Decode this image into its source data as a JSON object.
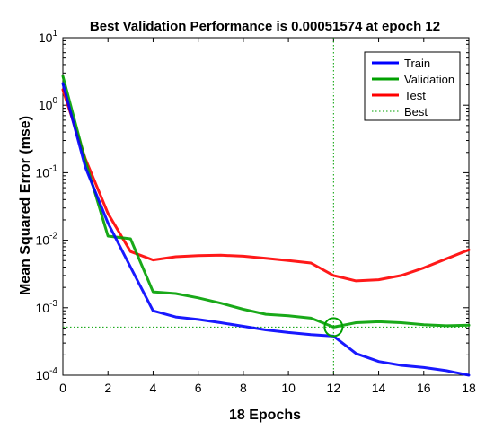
{
  "chart_data": {
    "type": "line",
    "title": "Best Validation Performance is 0.00051574 at epoch 12",
    "xlabel": "18 Epochs",
    "ylabel": "Mean Squared Error  (mse)",
    "xlim": [
      0,
      18
    ],
    "ylim": [
      0.0001,
      10
    ],
    "yscale": "log",
    "x_ticks": [
      "0",
      "2",
      "4",
      "6",
      "8",
      "10",
      "12",
      "14",
      "16",
      "18"
    ],
    "x_tick_values": [
      0,
      2,
      4,
      6,
      8,
      10,
      12,
      14,
      16,
      18
    ],
    "y_ticks": [
      {
        "base": "10",
        "exp": "-4",
        "value": 0.0001
      },
      {
        "base": "10",
        "exp": "-3",
        "value": 0.001
      },
      {
        "base": "10",
        "exp": "-2",
        "value": 0.01
      },
      {
        "base": "10",
        "exp": "-1",
        "value": 0.1
      },
      {
        "base": "10",
        "exp": "0",
        "value": 1
      },
      {
        "base": "10",
        "exp": "1",
        "value": 10
      }
    ],
    "x": [
      0,
      1,
      2,
      3,
      4,
      5,
      6,
      7,
      8,
      9,
      10,
      11,
      12,
      13,
      14,
      15,
      16,
      17,
      18
    ],
    "series": [
      {
        "name": "Train",
        "color": "#0000ff",
        "values": [
          2.1,
          0.12,
          0.018,
          0.004,
          0.0009,
          0.00073,
          0.00067,
          0.0006,
          0.00053,
          0.00047,
          0.00043,
          0.0004,
          0.00038,
          0.00021,
          0.00016,
          0.00014,
          0.00013,
          0.000117,
          0.0001
        ]
      },
      {
        "name": "Validation",
        "color": "#00a000",
        "values": [
          2.7,
          0.15,
          0.0115,
          0.0105,
          0.00172,
          0.00162,
          0.0014,
          0.00117,
          0.00095,
          0.0008,
          0.00076,
          0.0007,
          0.00051574,
          0.0006,
          0.00062,
          0.0006,
          0.00056,
          0.00054,
          0.00055
        ]
      },
      {
        "name": "Test",
        "color": "#ff0000",
        "values": [
          1.7,
          0.16,
          0.025,
          0.0068,
          0.0051,
          0.0057,
          0.0059,
          0.006,
          0.0058,
          0.0054,
          0.005,
          0.0046,
          0.003,
          0.0025,
          0.0026,
          0.003,
          0.0039,
          0.0053,
          0.0072
        ]
      }
    ],
    "best": {
      "name": "Best",
      "color": "#00a000",
      "epoch": 12,
      "value": 0.00051574
    },
    "legend": {
      "position": "top-right"
    },
    "grid": false
  }
}
